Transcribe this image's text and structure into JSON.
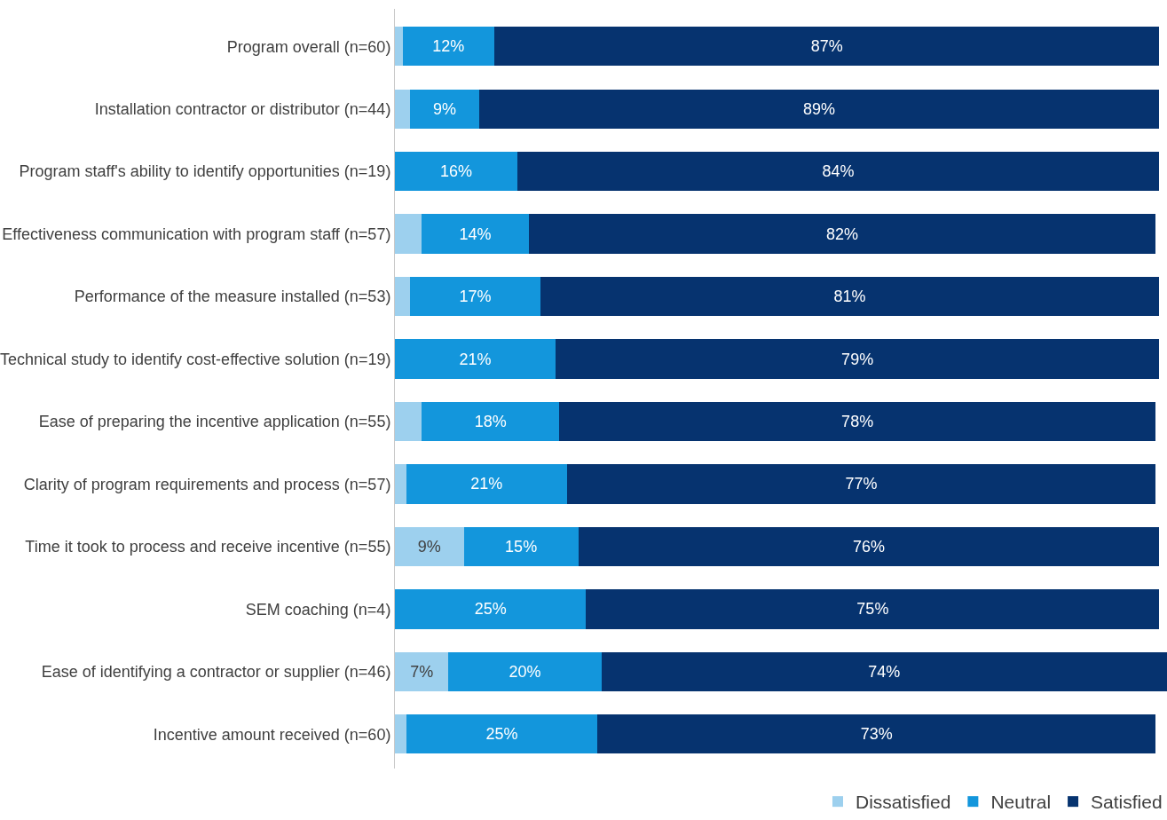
{
  "chart_data": {
    "type": "bar",
    "orientation": "horizontal",
    "stacked": true,
    "categories": [
      "Program overall (n=60)",
      "Installation contractor or distributor (n=44)",
      "Program staff's ability to identify opportunities (n=19)",
      "Effectiveness communication with program staff (n=57)",
      "Performance of the measure installed (n=53)",
      "Technical study to identify cost-effective solution (n=19)",
      "Ease of preparing the incentive application (n=55)",
      "Clarity of program requirements and process (n=57)",
      "Time it took to process and receive incentive (n=55)",
      "SEM coaching (n=4)",
      "Ease of identifying a contractor or supplier (n=46)",
      "Incentive amount received (n=60)"
    ],
    "series": [
      {
        "name": "Dissatisfied",
        "color": "#9dd0ee",
        "values": [
          1,
          2,
          0,
          3.5,
          2,
          0,
          3.5,
          1.5,
          9,
          0,
          7,
          1.5
        ],
        "value_labels": [
          null,
          null,
          null,
          null,
          null,
          null,
          null,
          null,
          "9%",
          null,
          "7%",
          null
        ]
      },
      {
        "name": "Neutral",
        "color": "#1396dc",
        "values": [
          12,
          9,
          16,
          14,
          17,
          21,
          18,
          21,
          15,
          25,
          20,
          25
        ],
        "value_labels": [
          "12%",
          "9%",
          "16%",
          "14%",
          "17%",
          "21%",
          "18%",
          "21%",
          "15%",
          "25%",
          "20%",
          "25%"
        ]
      },
      {
        "name": "Satisfied",
        "color": "#06336f",
        "values": [
          87,
          89,
          84,
          82,
          81,
          79,
          78,
          77,
          76,
          75,
          74,
          73
        ],
        "value_labels": [
          "87%",
          "89%",
          "84%",
          "82%",
          "81%",
          "79%",
          "78%",
          "77%",
          "76%",
          "75%",
          "74%",
          "73%"
        ]
      }
    ],
    "xlim": [
      0,
      101
    ],
    "tick_labels": "y",
    "legend": "bottom right"
  }
}
